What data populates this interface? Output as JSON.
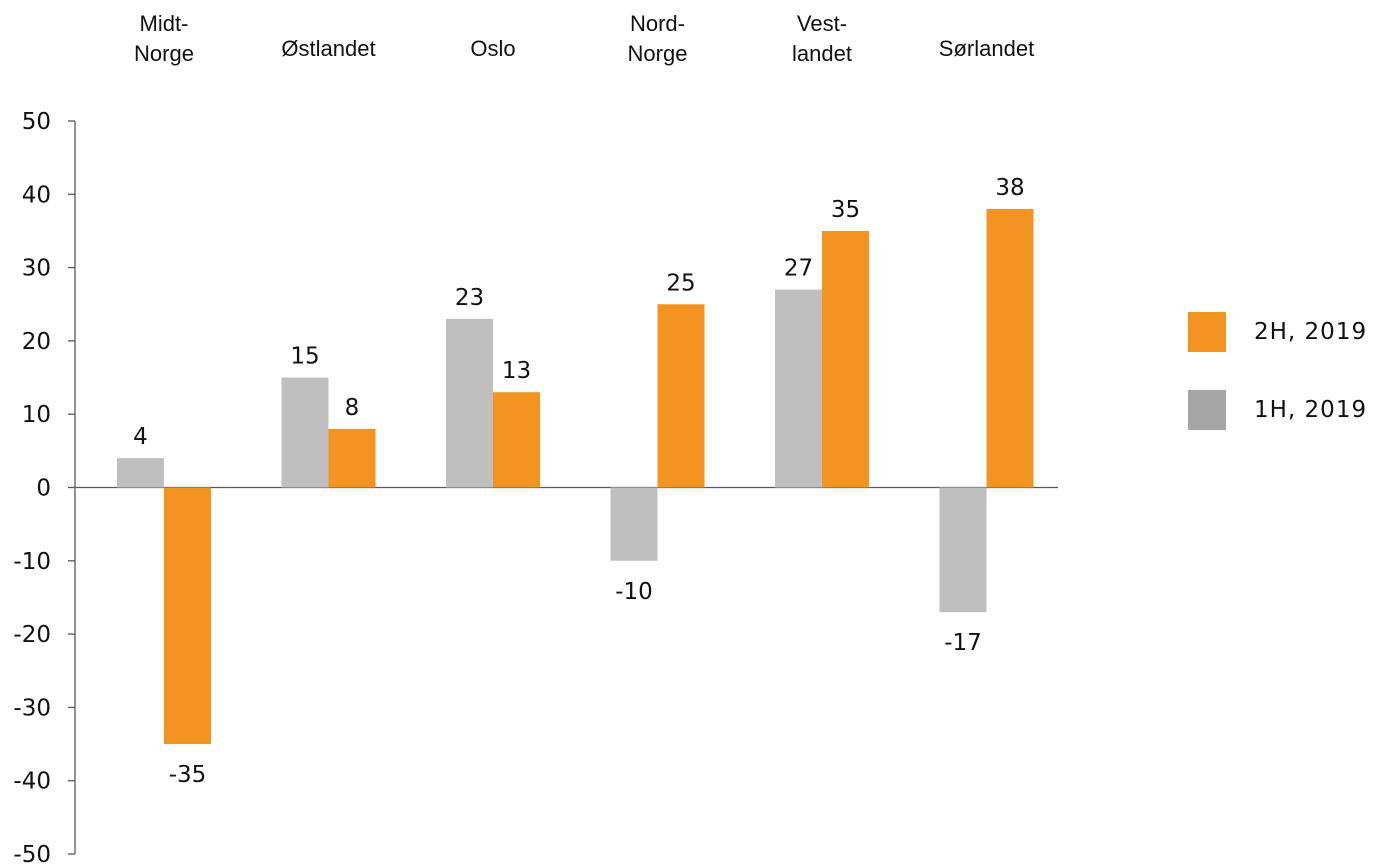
{
  "chart_data": {
    "type": "bar",
    "categories": [
      [
        "Midt-",
        "Norge"
      ],
      [
        "Østlandet"
      ],
      [
        "Oslo"
      ],
      [
        "Nord-",
        "Norge"
      ],
      [
        "Vest-",
        "landet"
      ],
      [
        "Sørlandet"
      ]
    ],
    "series": [
      {
        "name": "1H, 2019",
        "color": "#bfbfbf",
        "values": [
          4,
          15,
          23,
          -10,
          27,
          -17
        ]
      },
      {
        "name": "2H, 2019",
        "color": "#f39322",
        "values": [
          -35,
          8,
          13,
          25,
          35,
          38
        ]
      }
    ],
    "data_labels": [
      [
        "4",
        "15",
        "23",
        "-10",
        "27",
        "-17"
      ],
      [
        "-35",
        "8",
        "13",
        "25",
        "35",
        "38"
      ]
    ],
    "ylim": [
      -50,
      50
    ],
    "yticks": [
      "50",
      "40",
      "30",
      "20",
      "10",
      "0",
      "-10",
      "-20",
      "-30",
      "-40",
      "-50"
    ],
    "legend_position": "right",
    "category_labels_position": "top",
    "grid": false
  },
  "legend": {
    "items": [
      {
        "label": "2H, 2019",
        "color": "#f39322"
      },
      {
        "label": "1H, 2019",
        "color": "#a6a6a6"
      }
    ]
  }
}
